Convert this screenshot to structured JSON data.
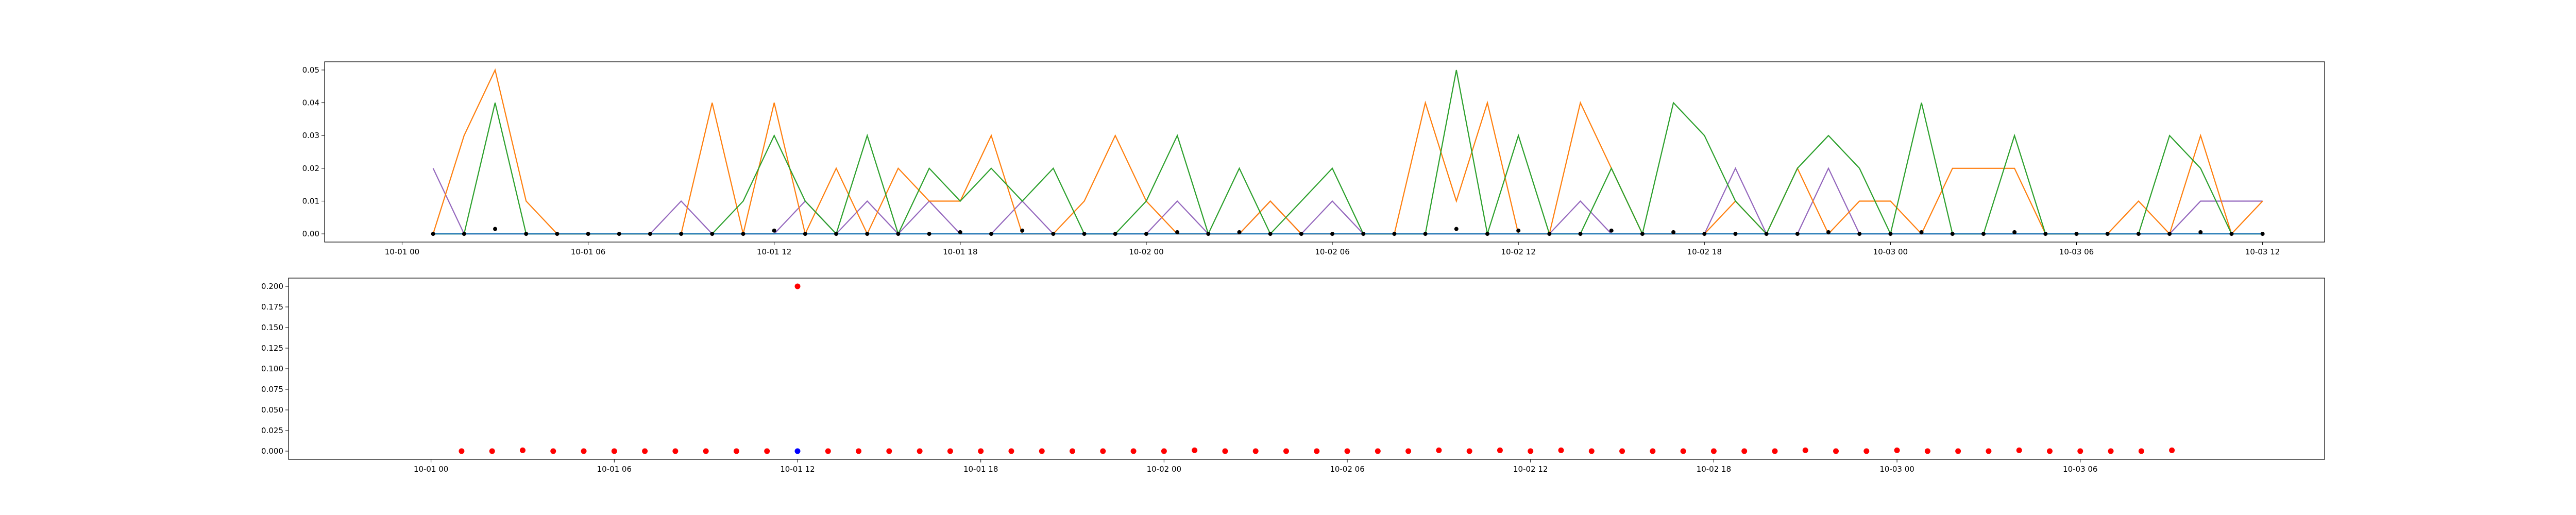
{
  "chart_data": [
    {
      "type": "line",
      "title": "",
      "xlabel": "",
      "ylabel": "",
      "grid": false,
      "legend": "none",
      "x_range": [
        "2023-09-30 21:30",
        "2023-10-03 14:00"
      ],
      "ylim": [
        -0.0025,
        0.0525
      ],
      "x_ticks": [
        {
          "t": "2023-10-01 00:00",
          "label": "10-01 00"
        },
        {
          "t": "2023-10-01 06:00",
          "label": "10-01 06"
        },
        {
          "t": "2023-10-01 12:00",
          "label": "10-01 12"
        },
        {
          "t": "2023-10-01 18:00",
          "label": "10-01 18"
        },
        {
          "t": "2023-10-02 00:00",
          "label": "10-02 00"
        },
        {
          "t": "2023-10-02 06:00",
          "label": "10-02 06"
        },
        {
          "t": "2023-10-02 12:00",
          "label": "10-02 12"
        },
        {
          "t": "2023-10-02 18:00",
          "label": "10-02 18"
        },
        {
          "t": "2023-10-03 00:00",
          "label": "10-03 00"
        },
        {
          "t": "2023-10-03 06:00",
          "label": "10-03 06"
        },
        {
          "t": "2023-10-03 12:00",
          "label": "10-03 12"
        }
      ],
      "y_ticks": [
        {
          "v": 0.0,
          "label": "0.00"
        },
        {
          "v": 0.01,
          "label": "0.01"
        },
        {
          "v": 0.02,
          "label": "0.02"
        },
        {
          "v": 0.03,
          "label": "0.03"
        },
        {
          "v": 0.04,
          "label": "0.04"
        },
        {
          "v": 0.05,
          "label": "0.05"
        }
      ],
      "x": [
        "2023-10-01 01:00",
        "2023-10-01 02:00",
        "2023-10-01 03:00",
        "2023-10-01 04:00",
        "2023-10-01 05:00",
        "2023-10-01 06:00",
        "2023-10-01 07:00",
        "2023-10-01 08:00",
        "2023-10-01 09:00",
        "2023-10-01 10:00",
        "2023-10-01 11:00",
        "2023-10-01 12:00",
        "2023-10-01 13:00",
        "2023-10-01 14:00",
        "2023-10-01 15:00",
        "2023-10-01 16:00",
        "2023-10-01 17:00",
        "2023-10-01 18:00",
        "2023-10-01 19:00",
        "2023-10-01 20:00",
        "2023-10-01 21:00",
        "2023-10-01 22:00",
        "2023-10-01 23:00",
        "2023-10-02 00:00",
        "2023-10-02 01:00",
        "2023-10-02 02:00",
        "2023-10-02 03:00",
        "2023-10-02 04:00",
        "2023-10-02 05:00",
        "2023-10-02 06:00",
        "2023-10-02 07:00",
        "2023-10-02 08:00",
        "2023-10-02 09:00",
        "2023-10-02 10:00",
        "2023-10-02 11:00",
        "2023-10-02 12:00",
        "2023-10-02 13:00",
        "2023-10-02 14:00",
        "2023-10-02 15:00",
        "2023-10-02 16:00",
        "2023-10-02 17:00",
        "2023-10-02 18:00",
        "2023-10-02 19:00",
        "2023-10-02 20:00",
        "2023-10-02 21:00",
        "2023-10-02 22:00",
        "2023-10-02 23:00",
        "2023-10-03 00:00",
        "2023-10-03 01:00",
        "2023-10-03 02:00",
        "2023-10-03 03:00",
        "2023-10-03 04:00",
        "2023-10-03 05:00",
        "2023-10-03 06:00",
        "2023-10-03 07:00",
        "2023-10-03 08:00",
        "2023-10-03 09:00",
        "2023-10-03 10:00",
        "2023-10-03 11:00",
        "2023-10-03 12:00"
      ],
      "series": [
        {
          "color": "#9467bd",
          "values": [
            0.02,
            0,
            0,
            0,
            0,
            0,
            0,
            0,
            0.01,
            0,
            0,
            0,
            0.01,
            0,
            0.01,
            0,
            0.01,
            0,
            0,
            0.01,
            0,
            0,
            0,
            0,
            0.01,
            0,
            0,
            0.01,
            0,
            0.01,
            0,
            0,
            0,
            0,
            0,
            0,
            0,
            0.01,
            0,
            0,
            0,
            0,
            0.02,
            0,
            0,
            0.02,
            0,
            0,
            0,
            0,
            0,
            0,
            0,
            0,
            0,
            0,
            0,
            0.01,
            0.01,
            0.01
          ]
        },
        {
          "color": "#ff7f0e",
          "values": [
            0,
            0.03,
            0.05,
            0.01,
            0,
            0,
            0,
            0,
            0,
            0.04,
            0,
            0.04,
            0,
            0.02,
            0,
            0.02,
            0.01,
            0.01,
            0.03,
            0,
            0,
            0.01,
            0.03,
            0.01,
            0,
            0,
            0,
            0.01,
            0,
            0,
            0,
            0,
            0.04,
            0.01,
            0.04,
            0,
            0,
            0.04,
            0.02,
            0,
            0,
            0,
            0.01,
            0,
            0.02,
            0,
            0.01,
            0.01,
            0,
            0.02,
            0.02,
            0.02,
            0,
            0,
            0,
            0.01,
            0,
            0.03,
            0,
            0.01
          ]
        },
        {
          "color": "#2ca02c",
          "values": [
            0,
            0,
            0.04,
            0,
            0,
            0,
            0,
            0,
            0,
            0,
            0.01,
            0.03,
            0.01,
            0,
            0.03,
            0,
            0.02,
            0.01,
            0.02,
            0.01,
            0.02,
            0,
            0,
            0.01,
            0.03,
            0,
            0.02,
            0,
            0.01,
            0.02,
            0,
            0,
            0,
            0.05,
            0,
            0.03,
            0,
            0,
            0.02,
            0,
            0.04,
            0.03,
            0.01,
            0,
            0.02,
            0.03,
            0.02,
            0,
            0.04,
            0,
            0,
            0.03,
            0,
            0,
            0,
            0,
            0.03,
            0.02,
            0,
            0
          ]
        },
        {
          "color": "#1f77b4",
          "values": [
            0,
            0,
            0,
            0,
            0,
            0,
            0,
            0,
            0,
            0,
            0,
            0,
            0,
            0,
            0,
            0,
            0,
            0,
            0,
            0,
            0,
            0,
            0,
            0,
            0,
            0,
            0,
            0,
            0,
            0,
            0,
            0,
            0,
            0,
            0,
            0,
            0,
            0,
            0,
            0,
            0,
            0,
            0,
            0,
            0,
            0,
            0,
            0,
            0,
            0,
            0,
            0,
            0,
            0,
            0,
            0,
            0,
            0,
            0,
            0
          ]
        },
        {
          "color": "#000000",
          "type": "scatter",
          "values": [
            0,
            0,
            0.0015,
            0,
            0,
            0,
            0,
            0,
            0,
            0,
            0,
            0.001,
            0,
            0,
            0,
            0,
            0,
            0.0005,
            0,
            0.001,
            0,
            0,
            0,
            0,
            0.0005,
            0,
            0.0005,
            0,
            0,
            0,
            0,
            0,
            0,
            0.0015,
            0,
            0.001,
            0,
            0,
            0.001,
            0,
            0.0005,
            0,
            0,
            0,
            0,
            0.0005,
            0,
            0,
            0.0005,
            0,
            0,
            0.0005,
            0,
            0,
            0,
            0,
            0,
            0.0005,
            0,
            0
          ]
        }
      ]
    },
    {
      "type": "scatter",
      "title": "",
      "xlabel": "",
      "ylabel": "",
      "grid": false,
      "legend": "none",
      "x_range": [
        "2023-09-30 19:20",
        "2023-10-03 14:00"
      ],
      "ylim": [
        -0.01,
        0.21
      ],
      "x_ticks": [
        {
          "t": "2023-10-01 00:00",
          "label": "10-01 00"
        },
        {
          "t": "2023-10-01 06:00",
          "label": "10-01 06"
        },
        {
          "t": "2023-10-01 12:00",
          "label": "10-01 12"
        },
        {
          "t": "2023-10-01 18:00",
          "label": "10-01 18"
        },
        {
          "t": "2023-10-02 00:00",
          "label": "10-02 00"
        },
        {
          "t": "2023-10-02 06:00",
          "label": "10-02 06"
        },
        {
          "t": "2023-10-02 12:00",
          "label": "10-02 12"
        },
        {
          "t": "2023-10-02 18:00",
          "label": "10-02 18"
        },
        {
          "t": "2023-10-03 00:00",
          "label": "10-03 00"
        },
        {
          "t": "2023-10-03 06:00",
          "label": "10-03 06"
        }
      ],
      "y_ticks": [
        {
          "v": 0.0,
          "label": "0.000"
        },
        {
          "v": 0.025,
          "label": "0.025"
        },
        {
          "v": 0.05,
          "label": "0.050"
        },
        {
          "v": 0.075,
          "label": "0.075"
        },
        {
          "v": 0.1,
          "label": "0.100"
        },
        {
          "v": 0.125,
          "label": "0.125"
        },
        {
          "v": 0.15,
          "label": "0.150"
        },
        {
          "v": 0.175,
          "label": "0.175"
        },
        {
          "v": 0.2,
          "label": "0.200"
        }
      ],
      "x": [
        "2023-10-01 01:00",
        "2023-10-01 02:00",
        "2023-10-01 03:00",
        "2023-10-01 04:00",
        "2023-10-01 05:00",
        "2023-10-01 06:00",
        "2023-10-01 07:00",
        "2023-10-01 08:00",
        "2023-10-01 09:00",
        "2023-10-01 10:00",
        "2023-10-01 11:00",
        "2023-10-01 12:00",
        "2023-10-01 13:00",
        "2023-10-01 14:00",
        "2023-10-01 15:00",
        "2023-10-01 16:00",
        "2023-10-01 17:00",
        "2023-10-01 18:00",
        "2023-10-01 19:00",
        "2023-10-01 20:00",
        "2023-10-01 21:00",
        "2023-10-01 22:00",
        "2023-10-01 23:00",
        "2023-10-02 00:00",
        "2023-10-02 01:00",
        "2023-10-02 02:00",
        "2023-10-02 03:00",
        "2023-10-02 04:00",
        "2023-10-02 05:00",
        "2023-10-02 06:00",
        "2023-10-02 07:00",
        "2023-10-02 08:00",
        "2023-10-02 09:00",
        "2023-10-02 10:00",
        "2023-10-02 11:00",
        "2023-10-02 12:00",
        "2023-10-02 13:00",
        "2023-10-02 14:00",
        "2023-10-02 15:00",
        "2023-10-02 16:00",
        "2023-10-02 17:00",
        "2023-10-02 18:00",
        "2023-10-02 19:00",
        "2023-10-02 20:00",
        "2023-10-02 21:00",
        "2023-10-02 22:00",
        "2023-10-02 23:00",
        "2023-10-03 00:00",
        "2023-10-03 01:00",
        "2023-10-03 02:00",
        "2023-10-03 03:00",
        "2023-10-03 04:00",
        "2023-10-03 05:00",
        "2023-10-03 06:00",
        "2023-10-03 07:00",
        "2023-10-03 08:00",
        "2023-10-03 09:00"
      ],
      "series": [
        {
          "color": "#ff0000",
          "values": [
            0,
            0,
            0.001,
            0,
            0,
            0,
            0,
            0,
            0,
            0,
            0,
            0.2,
            0,
            0,
            0,
            0,
            0,
            0,
            0,
            0,
            0,
            0,
            0,
            0,
            0.001,
            0,
            0,
            0,
            0,
            0,
            0,
            0,
            0.001,
            0,
            0.001,
            0,
            0.001,
            0,
            0,
            0,
            0,
            0,
            0,
            0,
            0.001,
            0,
            0,
            0.001,
            0,
            0,
            0,
            0.001,
            0,
            0,
            0,
            0,
            0.001
          ]
        },
        {
          "color": "#0000ff",
          "values": [
            null,
            null,
            null,
            null,
            null,
            null,
            null,
            null,
            null,
            null,
            null,
            0,
            null,
            null,
            null,
            null,
            null,
            null,
            null,
            null,
            null,
            null,
            null,
            null,
            null,
            null,
            null,
            null,
            null,
            null,
            null,
            null,
            null,
            null,
            null,
            null,
            null,
            null,
            null,
            null,
            null,
            null,
            null,
            null,
            null,
            null,
            null,
            null,
            null,
            null,
            null,
            null,
            null,
            null,
            null,
            null,
            null
          ]
        }
      ]
    }
  ]
}
